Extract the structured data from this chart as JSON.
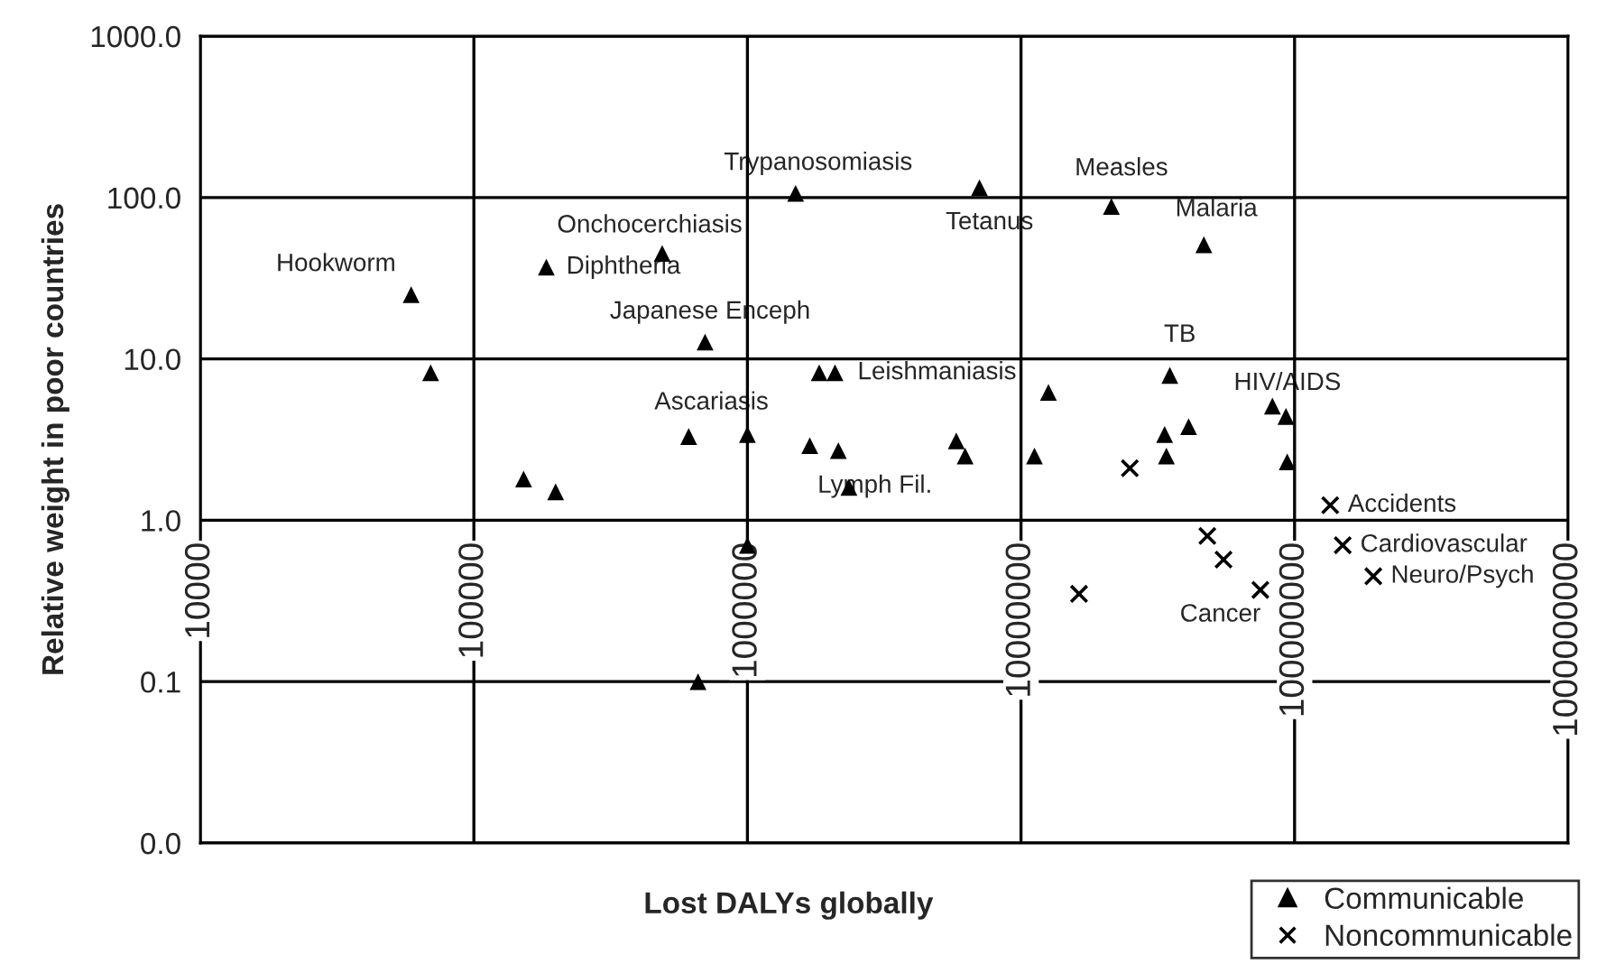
{
  "chart_data": {
    "type": "scatter",
    "xlabel": "Lost DALYs globally",
    "ylabel": "Relative weight in poor countries",
    "log": "xy",
    "grid": true,
    "legend": "bottom right",
    "xlim": [
      10000,
      1000000000
    ],
    "xticks": [
      10000,
      100000,
      1000000,
      10000000,
      100000000,
      1000000000
    ],
    "ylim": [
      0.01,
      1000
    ],
    "yticks": [
      {
        "value": 0.01,
        "label": "0.0"
      },
      {
        "value": 0.1,
        "label": "0.1"
      },
      {
        "value": 1,
        "label": "1.0"
      },
      {
        "value": 10,
        "label": "10.0"
      },
      {
        "value": 100,
        "label": "100.0"
      },
      {
        "value": 1000,
        "label": "1000.0"
      }
    ],
    "series": [
      {
        "name": "Communicable",
        "color": "#000000",
        "marker": "triangle",
        "x": [
          59000,
          69500,
          184000,
          488000,
          1500000,
          700000,
          1830000,
          2090000,
          610000,
          1000000,
          1690000,
          2150000,
          2350000,
          152000,
          199000,
          1000000,
          660000,
          7050000,
          21400000,
          46600000,
          35000000,
          12600000,
          5800000,
          6250000,
          11200000,
          33500000,
          34000000,
          41000000,
          83000000,
          93000000,
          94000000
        ],
        "values": [
          25,
          8.2,
          37,
          45,
          106,
          12.7,
          8.2,
          8.2,
          3.3,
          3.4,
          2.9,
          2.7,
          1.6,
          1.8,
          1.5,
          0.7,
          0.1,
          115,
          88,
          51,
          7.9,
          6.2,
          3.1,
          2.5,
          2.5,
          3.4,
          2.5,
          3.8,
          5.1,
          4.4,
          2.3
        ]
      },
      {
        "name": "Noncommunicable",
        "color": "#000000",
        "marker": "cross",
        "x": [
          25000000,
          16300000,
          48000000,
          55000000,
          75000000,
          135000000,
          150000000,
          194000000
        ],
        "values": [
          2.1,
          0.35,
          0.8,
          0.57,
          0.37,
          1.24,
          0.7,
          0.45
        ]
      }
    ],
    "annotations": [
      {
        "text": "Hookworm",
        "x": 59000,
        "y": 25
      },
      {
        "text": "Diphtheria",
        "x": 184000,
        "y": 37
      },
      {
        "text": "Onchocerchiasis",
        "x": 488000,
        "y": 45
      },
      {
        "text": "Trypanosomiasis",
        "x": 1500000,
        "y": 106
      },
      {
        "text": "Japanese Enceph",
        "x": 700000,
        "y": 12.7
      },
      {
        "text": "Ascariasis",
        "x": 1830000,
        "y": 8.2
      },
      {
        "text": "Leishmaniasis",
        "x": 2090000,
        "y": 8.2
      },
      {
        "text": "Tetanus",
        "x": 7050000,
        "y": 115
      },
      {
        "text": "Measles",
        "x": 21400000,
        "y": 88
      },
      {
        "text": "Malaria",
        "x": 46600000,
        "y": 51
      },
      {
        "text": "TB",
        "x": 35000000,
        "y": 7.9
      },
      {
        "text": "Lymph Fil.",
        "x": 6250000,
        "y": 2.5
      },
      {
        "text": "HIV/AIDS",
        "x": 83000000,
        "y": 5.1
      },
      {
        "text": "Accidents",
        "x": 135000000,
        "y": 1.24
      },
      {
        "text": "Cardiovascular",
        "x": 150000000,
        "y": 0.7
      },
      {
        "text": "Neuro/Psych",
        "x": 194000000,
        "y": 0.45
      },
      {
        "text": "Cancer",
        "x": 75000000,
        "y": 0.37
      }
    ]
  }
}
